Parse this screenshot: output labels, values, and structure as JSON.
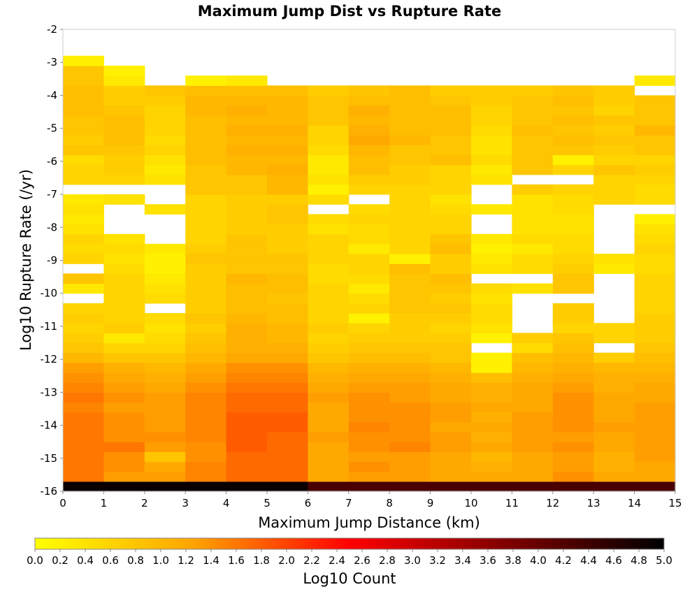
{
  "chart_data": {
    "type": "heatmap",
    "title": "Maximum Jump Dist vs Rupture Rate",
    "xlabel": "Maximum Jump Distance (km)",
    "ylabel": "Log10 Rupture Rate (/yr)",
    "colorbar_label": "Log10 Count",
    "xlim": [
      0,
      15
    ],
    "ylim": [
      -16,
      -2
    ],
    "x_ticks": [
      "0",
      "1",
      "2",
      "3",
      "4",
      "5",
      "6",
      "7",
      "8",
      "9",
      "10",
      "11",
      "12",
      "13",
      "14",
      "15"
    ],
    "y_ticks": [
      "-2",
      "-3",
      "-4",
      "-5",
      "-6",
      "-7",
      "-8",
      "-9",
      "-10",
      "-11",
      "-12",
      "-13",
      "-14",
      "-15",
      "-16"
    ],
    "color_range": [
      0,
      5
    ],
    "colorbar_ticks": [
      "0.0",
      "0.2",
      "0.4",
      "0.6",
      "0.8",
      "1.0",
      "1.2",
      "1.4",
      "1.6",
      "1.8",
      "2.0",
      "2.2",
      "2.4",
      "2.6",
      "2.8",
      "3.0",
      "3.2",
      "3.4",
      "3.6",
      "3.8",
      "4.0",
      "4.2",
      "4.4",
      "4.6",
      "4.8",
      "5.0"
    ],
    "colormap": [
      "#ffff00",
      "#ffa500",
      "#ff0000",
      "#800000",
      "#000000"
    ],
    "x_bin_width": 1,
    "y_bin_height": 0.3,
    "x_bins": [
      0.5,
      1.5,
      2.5,
      3.5,
      4.5,
      5.5,
      6.5,
      7.5,
      8.5,
      9.5,
      10.5,
      11.5,
      12.5,
      13.5,
      14.5
    ],
    "y_bins": [
      -15.85,
      -15.55,
      -15.25,
      -14.95,
      -14.65,
      -14.35,
      -14.05,
      -13.75,
      -13.45,
      -13.15,
      -12.85,
      -12.55,
      -12.25,
      -11.95,
      -11.65,
      -11.35,
      -11.05,
      -10.75,
      -10.45,
      -10.15,
      -9.85,
      -9.55,
      -9.25,
      -8.95,
      -8.65,
      -8.35,
      -8.05,
      -7.75,
      -7.45,
      -7.15,
      -6.85,
      -6.55,
      -6.25,
      -5.95,
      -5.65,
      -5.35,
      -5.05,
      -4.75,
      -4.45,
      -4.15,
      -3.85,
      -3.55,
      -3.25,
      -2.95
    ],
    "values": [
      [
        4.9,
        4.9,
        4.9,
        4.9,
        4.9,
        4.9,
        4.3,
        4.3,
        4.3,
        4.3,
        4.3,
        4.3,
        4.3,
        4.3,
        4.3
      ],
      [
        1.6,
        1.3,
        1.3,
        1.5,
        1.7,
        1.7,
        1.2,
        1.3,
        1.3,
        1.2,
        1.2,
        1.2,
        1.4,
        1.2,
        1.2
      ],
      [
        1.6,
        1.4,
        1.2,
        1.5,
        1.7,
        1.7,
        1.2,
        1.4,
        1.3,
        1.2,
        1.1,
        1.2,
        1.3,
        1.1,
        1.2
      ],
      [
        1.6,
        1.4,
        0.8,
        1.4,
        1.7,
        1.7,
        1.2,
        1.3,
        1.3,
        1.2,
        1.0,
        1.2,
        1.3,
        1.1,
        1.3
      ],
      [
        1.6,
        1.6,
        1.3,
        1.4,
        1.8,
        1.7,
        1.2,
        1.4,
        1.5,
        1.3,
        1.2,
        1.3,
        1.4,
        1.2,
        1.3
      ],
      [
        1.6,
        1.4,
        1.4,
        1.5,
        1.8,
        1.7,
        1.3,
        1.4,
        1.4,
        1.3,
        1.1,
        1.3,
        1.3,
        1.2,
        1.3
      ],
      [
        1.6,
        1.4,
        1.3,
        1.5,
        1.8,
        1.8,
        1.2,
        1.5,
        1.4,
        1.2,
        1.2,
        1.3,
        1.4,
        1.3,
        1.3
      ],
      [
        1.6,
        1.4,
        1.3,
        1.5,
        1.8,
        1.8,
        1.2,
        1.4,
        1.4,
        1.3,
        1.1,
        1.3,
        1.4,
        1.2,
        1.3
      ],
      [
        1.5,
        1.3,
        1.3,
        1.5,
        1.7,
        1.7,
        1.2,
        1.4,
        1.4,
        1.3,
        1.2,
        1.2,
        1.4,
        1.2,
        1.3
      ],
      [
        1.6,
        1.4,
        1.3,
        1.5,
        1.7,
        1.7,
        1.3,
        1.4,
        1.3,
        1.2,
        1.1,
        1.2,
        1.4,
        1.2,
        1.2
      ],
      [
        1.5,
        1.3,
        1.2,
        1.4,
        1.6,
        1.6,
        1.2,
        1.3,
        1.3,
        1.2,
        1.1,
        1.2,
        1.3,
        1.1,
        1.2
      ],
      [
        1.4,
        1.2,
        1.1,
        1.3,
        1.5,
        1.5,
        1.1,
        1.2,
        1.2,
        1.1,
        0.9,
        1.1,
        1.2,
        1.1,
        1.1
      ],
      [
        1.3,
        1.1,
        1.0,
        1.2,
        1.4,
        1.4,
        1.0,
        1.1,
        1.1,
        1.0,
        0.2,
        1.0,
        1.1,
        1.0,
        1.0
      ],
      [
        1.0,
        0.8,
        0.8,
        1.0,
        1.2,
        1.2,
        0.8,
        0.9,
        0.9,
        0.8,
        0.2,
        0.9,
        1.0,
        0.7,
        0.9
      ],
      [
        0.8,
        0.6,
        0.6,
        0.9,
        1.1,
        1.1,
        0.7,
        0.8,
        0.8,
        0.8,
        null,
        0.5,
        0.9,
        null,
        0.8
      ],
      [
        0.7,
        0.3,
        0.5,
        0.8,
        1.1,
        1.0,
        0.6,
        0.7,
        0.7,
        0.7,
        0.2,
        0.7,
        0.8,
        0.6,
        0.7
      ],
      [
        0.6,
        0.7,
        0.4,
        0.7,
        1.1,
        1.0,
        0.7,
        0.6,
        0.7,
        0.6,
        0.4,
        null,
        0.6,
        0.6,
        0.7
      ],
      [
        0.7,
        0.6,
        0.5,
        0.8,
        1.0,
        0.9,
        0.6,
        0.2,
        0.7,
        0.7,
        0.5,
        null,
        0.7,
        null,
        0.7
      ],
      [
        0.6,
        0.6,
        null,
        0.7,
        0.9,
        0.9,
        0.6,
        0.6,
        0.8,
        0.8,
        0.5,
        null,
        0.7,
        null,
        0.6
      ],
      [
        null,
        0.6,
        0.5,
        0.7,
        0.9,
        0.8,
        0.6,
        0.5,
        0.8,
        0.7,
        0.4,
        null,
        null,
        null,
        0.6
      ],
      [
        0.3,
        0.6,
        0.4,
        0.7,
        0.9,
        0.9,
        0.6,
        0.3,
        0.8,
        0.8,
        0.5,
        0.4,
        0.8,
        null,
        0.6
      ],
      [
        0.8,
        0.6,
        0.3,
        0.7,
        1.0,
        0.9,
        0.5,
        0.5,
        0.8,
        0.9,
        null,
        null,
        0.8,
        null,
        0.6
      ],
      [
        null,
        0.5,
        0.2,
        0.7,
        0.8,
        0.8,
        0.5,
        0.6,
        0.9,
        0.7,
        0.4,
        0.5,
        0.7,
        0.3,
        0.5
      ],
      [
        0.6,
        0.4,
        0.2,
        0.8,
        0.8,
        0.8,
        0.6,
        0.6,
        0.2,
        0.7,
        0.3,
        0.5,
        0.6,
        0.4,
        0.5
      ],
      [
        0.5,
        0.5,
        0.3,
        0.7,
        0.8,
        0.7,
        0.6,
        0.3,
        0.6,
        0.9,
        0.2,
        0.3,
        0.5,
        null,
        0.6
      ],
      [
        0.6,
        0.4,
        null,
        0.6,
        0.8,
        0.7,
        0.6,
        0.5,
        0.6,
        0.8,
        0.3,
        0.5,
        0.5,
        null,
        0.5
      ],
      [
        0.4,
        null,
        null,
        0.6,
        0.7,
        0.7,
        0.4,
        0.5,
        0.6,
        0.6,
        null,
        0.4,
        0.4,
        null,
        0.4
      ],
      [
        0.3,
        null,
        null,
        0.6,
        0.7,
        0.8,
        0.5,
        0.6,
        0.6,
        0.6,
        null,
        0.4,
        0.4,
        null,
        0.2
      ],
      [
        0.4,
        null,
        0.4,
        0.6,
        0.7,
        0.8,
        null,
        0.5,
        0.6,
        0.5,
        0.3,
        0.4,
        0.5,
        null,
        null
      ],
      [
        0.3,
        0.4,
        null,
        0.6,
        0.7,
        0.7,
        0.5,
        null,
        0.6,
        0.4,
        null,
        0.4,
        0.5,
        0.6,
        0.5
      ],
      [
        null,
        null,
        null,
        0.8,
        0.8,
        1.0,
        0.2,
        0.6,
        0.6,
        0.6,
        null,
        0.7,
        0.6,
        0.6,
        0.5
      ],
      [
        0.6,
        0.6,
        0.4,
        0.8,
        0.8,
        1.0,
        0.4,
        0.7,
        0.7,
        0.6,
        0.4,
        null,
        null,
        0.6,
        0.6
      ],
      [
        0.6,
        0.7,
        0.3,
        0.8,
        1.0,
        1.1,
        0.3,
        0.9,
        0.7,
        0.6,
        0.3,
        0.8,
        0.6,
        0.8,
        0.7
      ],
      [
        0.5,
        0.7,
        0.4,
        0.9,
        1.0,
        1.0,
        0.3,
        0.9,
        0.8,
        0.9,
        0.5,
        0.8,
        0.2,
        0.6,
        0.6
      ],
      [
        0.8,
        0.8,
        0.6,
        0.9,
        1.1,
        1.1,
        0.5,
        1.0,
        0.8,
        0.8,
        0.4,
        0.8,
        0.8,
        0.7,
        0.8
      ],
      [
        0.7,
        0.9,
        0.5,
        0.9,
        1.0,
        1.0,
        0.6,
        1.2,
        1.0,
        0.8,
        0.4,
        0.8,
        0.9,
        0.8,
        0.8
      ],
      [
        0.8,
        0.9,
        0.6,
        0.9,
        1.1,
        1.1,
        0.6,
        1.1,
        0.9,
        0.9,
        0.5,
        0.9,
        0.8,
        0.7,
        1.0
      ],
      [
        0.8,
        0.9,
        0.6,
        0.9,
        1.0,
        1.0,
        0.8,
        1.0,
        0.9,
        0.9,
        0.6,
        0.8,
        0.9,
        0.8,
        0.8
      ],
      [
        0.9,
        0.8,
        0.6,
        1.0,
        1.1,
        1.0,
        0.8,
        1.1,
        0.9,
        0.9,
        0.6,
        0.8,
        0.8,
        0.6,
        0.8
      ],
      [
        0.9,
        0.7,
        0.7,
        1.0,
        1.0,
        1.0,
        0.8,
        0.9,
        0.9,
        0.8,
        0.7,
        0.8,
        0.9,
        0.7,
        0.8
      ],
      [
        0.9,
        0.7,
        0.8,
        0.9,
        0.9,
        0.9,
        0.7,
        0.8,
        0.9,
        0.7,
        0.7,
        0.7,
        0.8,
        0.7,
        null
      ],
      [
        0.8,
        0.3,
        null,
        0.2,
        0.3,
        null,
        null,
        null,
        null,
        null,
        null,
        null,
        null,
        null,
        0.3
      ],
      [
        0.8,
        0.2,
        null,
        null,
        null,
        null,
        null,
        null,
        null,
        null,
        null,
        null,
        null,
        null,
        null
      ],
      [
        0.2,
        null,
        null,
        null,
        null,
        null,
        null,
        null,
        null,
        null,
        null,
        null,
        null,
        null,
        null
      ]
    ]
  }
}
